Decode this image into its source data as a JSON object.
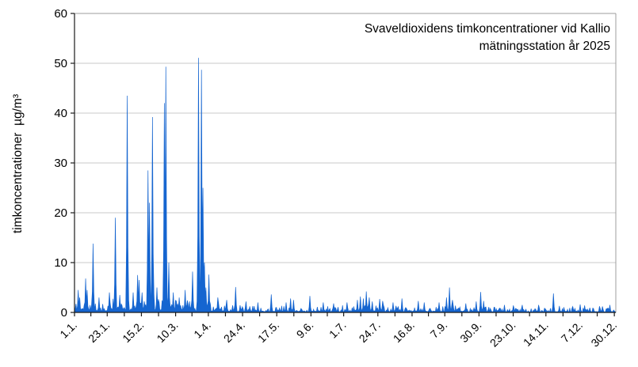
{
  "chart_data": {
    "type": "line",
    "title": "Svaveldioxidens timkoncentrationer vid Kallio mätningsstation år 2025",
    "title_lines": [
      "Svaveldioxidens timkoncentrationer vid Kallio",
      "mätningsstation år 2025"
    ],
    "ylabel": "timkoncentrationer  µg/m³",
    "ylim": [
      0,
      60
    ],
    "yticks": [
      0,
      10,
      20,
      30,
      40,
      50,
      60
    ],
    "xtick_labels": [
      "1.1.",
      "23.1.",
      "15.2.",
      "10.3.",
      "1.4.",
      "24.4.",
      "17.5.",
      "9.6.",
      "1.7.",
      "24.7.",
      "16.8.",
      "7.9.",
      "30.9.",
      "23.10.",
      "14.11.",
      "7.12.",
      "30.12."
    ],
    "xtick_days": [
      1,
      23,
      46,
      69,
      91,
      114,
      137,
      160,
      182,
      205,
      228,
      250,
      273,
      296,
      318,
      341,
      364
    ],
    "grid": true,
    "legend": "none",
    "days_in_year": 365,
    "samples_per_day": 2,
    "noise_seed": 11,
    "noise_envelope": [
      [
        1,
        2.6
      ],
      [
        15,
        2.4
      ],
      [
        30,
        2.8
      ],
      [
        45,
        3.0
      ],
      [
        60,
        3.2
      ],
      [
        75,
        3.0
      ],
      [
        90,
        2.6
      ],
      [
        100,
        1.9
      ],
      [
        115,
        1.5
      ],
      [
        130,
        1.4
      ],
      [
        145,
        1.4
      ],
      [
        160,
        1.2
      ],
      [
        175,
        1.1
      ],
      [
        190,
        1.6
      ],
      [
        200,
        1.8
      ],
      [
        210,
        1.5
      ],
      [
        225,
        1.2
      ],
      [
        240,
        1.0
      ],
      [
        250,
        1.6
      ],
      [
        258,
        1.5
      ],
      [
        268,
        1.1
      ],
      [
        275,
        1.5
      ],
      [
        285,
        1.0
      ],
      [
        300,
        0.9
      ],
      [
        315,
        1.0
      ],
      [
        325,
        1.2
      ],
      [
        340,
        0.9
      ],
      [
        355,
        1.0
      ],
      [
        365,
        1.1
      ]
    ],
    "peaks": [
      [
        3,
        4.5
      ],
      [
        4,
        3.0
      ],
      [
        8,
        6.8
      ],
      [
        9,
        4.5
      ],
      [
        13,
        13.8
      ],
      [
        17,
        3.0
      ],
      [
        24,
        4.0
      ],
      [
        28,
        19.0
      ],
      [
        31,
        3.5
      ],
      [
        36,
        43.5
      ],
      [
        40,
        4.0
      ],
      [
        43,
        7.5
      ],
      [
        44,
        6.5
      ],
      [
        46,
        4.0
      ],
      [
        50,
        28.5
      ],
      [
        51,
        22.0
      ],
      [
        53,
        39.2
      ],
      [
        56,
        5.0
      ],
      [
        61,
        42.0
      ],
      [
        62,
        49.3
      ],
      [
        64,
        10.0
      ],
      [
        67,
        4.0
      ],
      [
        71,
        3.0
      ],
      [
        75,
        4.5
      ],
      [
        80,
        8.2
      ],
      [
        84,
        51.1
      ],
      [
        86,
        48.7
      ],
      [
        87,
        25.0
      ],
      [
        88,
        10.0
      ],
      [
        89,
        5.0
      ],
      [
        91,
        7.6
      ],
      [
        97,
        3.0
      ],
      [
        103,
        2.5
      ],
      [
        109,
        5.1
      ],
      [
        116,
        2.2
      ],
      [
        124,
        2.0
      ],
      [
        133,
        3.6
      ],
      [
        143,
        2.0
      ],
      [
        146,
        2.8
      ],
      [
        148,
        2.5
      ],
      [
        159,
        3.3
      ],
      [
        168,
        2.0
      ],
      [
        175,
        1.8
      ],
      [
        184,
        2.0
      ],
      [
        191,
        2.5
      ],
      [
        193,
        3.2
      ],
      [
        195,
        2.8
      ],
      [
        197,
        4.2
      ],
      [
        199,
        3.0
      ],
      [
        201,
        2.2
      ],
      [
        206,
        2.7
      ],
      [
        208,
        2.3
      ],
      [
        215,
        2.0
      ],
      [
        221,
        2.8
      ],
      [
        232,
        2.3
      ],
      [
        236,
        2.0
      ],
      [
        246,
        2.0
      ],
      [
        251,
        3.0
      ],
      [
        253,
        5.0
      ],
      [
        255,
        2.5
      ],
      [
        264,
        1.8
      ],
      [
        271,
        2.2
      ],
      [
        274,
        4.1
      ],
      [
        276,
        2.3
      ],
      [
        290,
        1.5
      ],
      [
        296,
        1.4
      ],
      [
        302,
        1.5
      ],
      [
        313,
        1.5
      ],
      [
        323,
        3.8
      ],
      [
        327,
        1.3
      ],
      [
        336,
        1.2
      ],
      [
        341,
        1.6
      ],
      [
        344,
        1.4
      ],
      [
        356,
        1.2
      ],
      [
        361,
        1.5
      ]
    ],
    "colors": {
      "series": "#1565d0",
      "grid": "#c9c9c9",
      "border": "#9c9c9c",
      "axis": "#1a1a1a",
      "text": "#000000"
    }
  }
}
